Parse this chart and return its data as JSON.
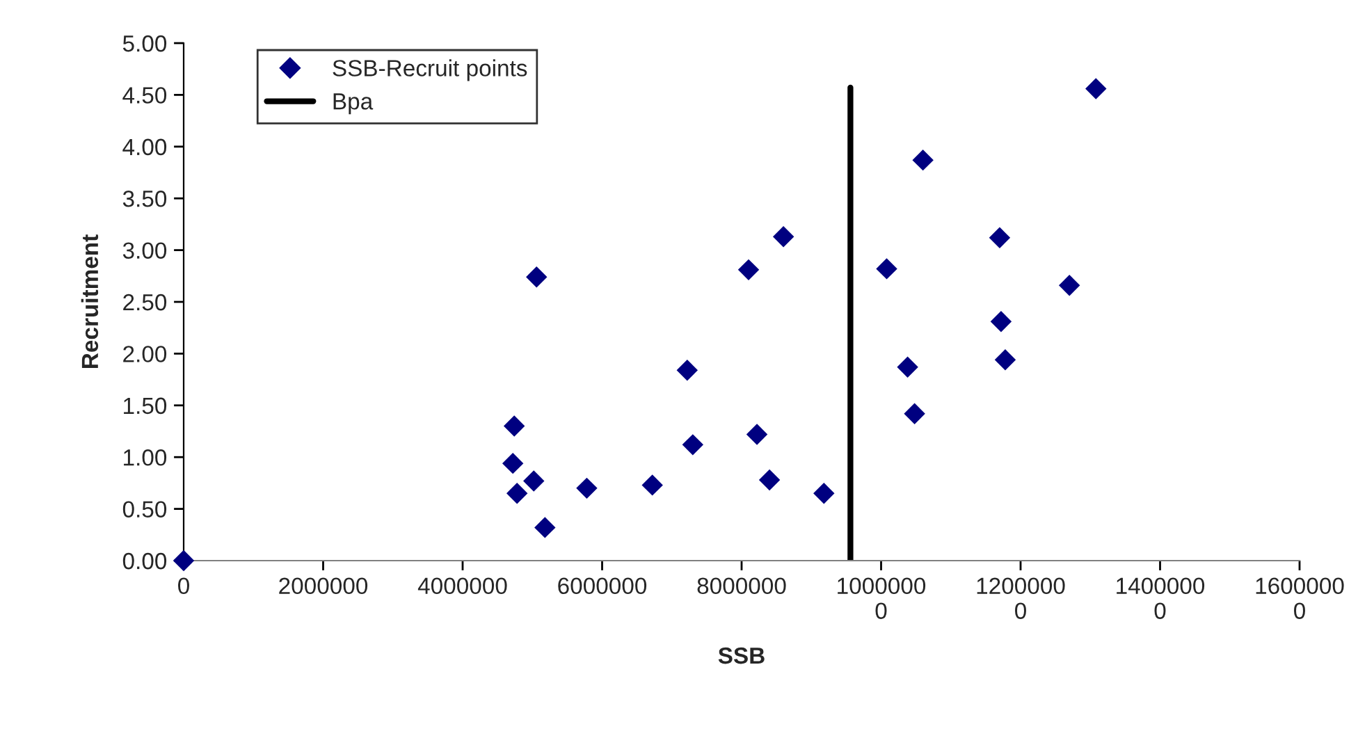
{
  "chart_data": {
    "type": "scatter",
    "xlabel": "SSB",
    "ylabel": "Recruitment",
    "xlim": [
      0,
      16000000
    ],
    "ylim": [
      0,
      5
    ],
    "xticks": [
      0,
      2000000,
      4000000,
      6000000,
      8000000,
      {
        "value": 10000000,
        "label": "1000000\n0"
      },
      {
        "value": 12000000,
        "label": "1200000\n0"
      },
      {
        "value": 14000000,
        "label": "1400000\n0"
      },
      {
        "value": 16000000,
        "label": "1600000\n0"
      }
    ],
    "yticks": [
      {
        "value": 0,
        "label": "0.00"
      },
      {
        "value": 0.5,
        "label": "0.50"
      },
      {
        "value": 1,
        "label": "1.00"
      },
      {
        "value": 1.5,
        "label": "1.50"
      },
      {
        "value": 2,
        "label": "2.00"
      },
      {
        "value": 2.5,
        "label": "2.50"
      },
      {
        "value": 3,
        "label": "3.00"
      },
      {
        "value": 3.5,
        "label": "3.50"
      },
      {
        "value": 4,
        "label": "4.00"
      },
      {
        "value": 4.5,
        "label": "4.50"
      },
      {
        "value": 5,
        "label": "5.00"
      }
    ],
    "grid": false,
    "legend": "top left",
    "series": [
      {
        "name": "SSB-Recruit points",
        "marker": "diamond",
        "color": "#000080",
        "x": [
          0,
          4720000,
          4740000,
          4780000,
          5020000,
          5060000,
          5180000,
          5780000,
          6720000,
          7220000,
          7300000,
          8100000,
          8220000,
          8400000,
          8600000,
          9180000,
          10080000,
          10380000,
          10480000,
          10600000,
          11700000,
          11720000,
          11780000,
          12700000,
          13080000
        ],
        "values": [
          0,
          0.94,
          1.3,
          0.65,
          0.77,
          2.74,
          0.32,
          0.7,
          0.73,
          1.84,
          1.12,
          2.81,
          1.22,
          0.78,
          3.13,
          0.65,
          2.82,
          1.87,
          1.42,
          3.87,
          3.12,
          2.31,
          1.94,
          2.66,
          4.56
        ]
      },
      {
        "name": "Bpa",
        "type": "line",
        "color": "#000000",
        "x": [
          9560000,
          9560000
        ],
        "values": [
          0,
          4.57
        ]
      }
    ]
  }
}
